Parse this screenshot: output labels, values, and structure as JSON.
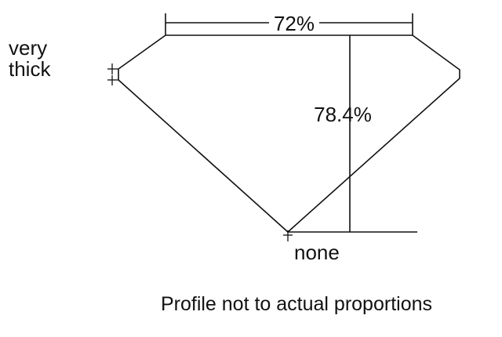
{
  "diagram": {
    "labels": {
      "girdle_line1": "very",
      "girdle_line2": "thick",
      "table_percent": "72%",
      "depth_percent": "78.4%",
      "culet": "none",
      "caption": "Profile not to actual proportions"
    },
    "colors": {
      "line": "#111111",
      "background": "#ffffff"
    }
  }
}
